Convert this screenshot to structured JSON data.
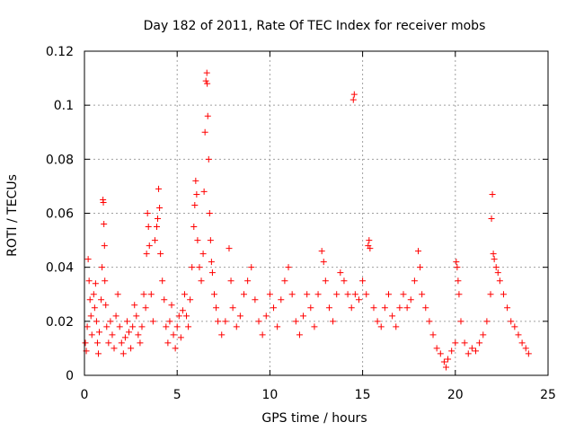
{
  "chart_data": {
    "type": "scatter",
    "title": "Day 182 of 2011, Rate Of TEC Index for receiver mobs",
    "xlabel": "GPS time / hours",
    "ylabel": "ROTI / TECUs",
    "xlim": [
      0,
      25
    ],
    "ylim": [
      0,
      0.12
    ],
    "xticks": [
      0,
      5,
      10,
      15,
      20,
      25
    ],
    "yticks": [
      0,
      0.02,
      0.04,
      0.06,
      0.08,
      0.1,
      0.12
    ],
    "xtick_labels": [
      "0",
      "5",
      "10",
      "15",
      "20",
      "25"
    ],
    "ytick_labels": [
      "0",
      "0.02",
      "0.04",
      "0.06",
      "0.08",
      "0.1",
      "0.12"
    ],
    "grid": true,
    "marker": "+",
    "color": "#ff0000",
    "series": [
      {
        "points": [
          [
            0.05,
            0.012
          ],
          [
            0.1,
            0.009
          ],
          [
            0.15,
            0.018
          ],
          [
            0.2,
            0.043
          ],
          [
            0.25,
            0.035
          ],
          [
            0.3,
            0.028
          ],
          [
            0.35,
            0.022
          ],
          [
            0.4,
            0.015
          ],
          [
            0.5,
            0.03
          ],
          [
            0.55,
            0.025
          ],
          [
            0.6,
            0.034
          ],
          [
            0.65,
            0.02
          ],
          [
            0.7,
            0.012
          ],
          [
            0.75,
            0.008
          ],
          [
            0.8,
            0.016
          ],
          [
            0.9,
            0.028
          ],
          [
            0.95,
            0.04
          ],
          [
            1.0,
            0.065
          ],
          [
            1.02,
            0.064
          ],
          [
            1.05,
            0.056
          ],
          [
            1.08,
            0.048
          ],
          [
            1.1,
            0.035
          ],
          [
            1.15,
            0.026
          ],
          [
            1.2,
            0.018
          ],
          [
            1.3,
            0.012
          ],
          [
            1.4,
            0.02
          ],
          [
            1.5,
            0.015
          ],
          [
            1.6,
            0.01
          ],
          [
            1.7,
            0.022
          ],
          [
            1.8,
            0.03
          ],
          [
            1.9,
            0.018
          ],
          [
            2.0,
            0.012
          ],
          [
            2.1,
            0.008
          ],
          [
            2.2,
            0.014
          ],
          [
            2.3,
            0.02
          ],
          [
            2.4,
            0.016
          ],
          [
            2.5,
            0.01
          ],
          [
            2.6,
            0.018
          ],
          [
            2.7,
            0.026
          ],
          [
            2.8,
            0.022
          ],
          [
            2.9,
            0.015
          ],
          [
            3.0,
            0.012
          ],
          [
            3.1,
            0.018
          ],
          [
            3.2,
            0.03
          ],
          [
            3.3,
            0.025
          ],
          [
            3.35,
            0.045
          ],
          [
            3.4,
            0.06
          ],
          [
            3.45,
            0.055
          ],
          [
            3.5,
            0.048
          ],
          [
            3.6,
            0.03
          ],
          [
            3.7,
            0.02
          ],
          [
            3.8,
            0.05
          ],
          [
            3.9,
            0.055
          ],
          [
            3.95,
            0.058
          ],
          [
            4.0,
            0.069
          ],
          [
            4.05,
            0.062
          ],
          [
            4.1,
            0.045
          ],
          [
            4.2,
            0.035
          ],
          [
            4.3,
            0.028
          ],
          [
            4.4,
            0.018
          ],
          [
            4.5,
            0.012
          ],
          [
            4.6,
            0.02
          ],
          [
            4.7,
            0.026
          ],
          [
            4.8,
            0.015
          ],
          [
            4.9,
            0.01
          ],
          [
            5.0,
            0.018
          ],
          [
            5.1,
            0.022
          ],
          [
            5.2,
            0.014
          ],
          [
            5.3,
            0.024
          ],
          [
            5.4,
            0.03
          ],
          [
            5.5,
            0.022
          ],
          [
            5.6,
            0.018
          ],
          [
            5.7,
            0.028
          ],
          [
            5.8,
            0.04
          ],
          [
            5.9,
            0.055
          ],
          [
            5.95,
            0.063
          ],
          [
            6.0,
            0.072
          ],
          [
            6.05,
            0.067
          ],
          [
            6.1,
            0.05
          ],
          [
            6.2,
            0.04
          ],
          [
            6.3,
            0.035
          ],
          [
            6.4,
            0.045
          ],
          [
            6.45,
            0.068
          ],
          [
            6.5,
            0.09
          ],
          [
            6.55,
            0.109
          ],
          [
            6.6,
            0.112
          ],
          [
            6.62,
            0.108
          ],
          [
            6.65,
            0.096
          ],
          [
            6.7,
            0.08
          ],
          [
            6.75,
            0.06
          ],
          [
            6.8,
            0.05
          ],
          [
            6.85,
            0.042
          ],
          [
            6.9,
            0.038
          ],
          [
            7.0,
            0.03
          ],
          [
            7.1,
            0.025
          ],
          [
            7.2,
            0.02
          ],
          [
            7.4,
            0.015
          ],
          [
            7.6,
            0.02
          ],
          [
            7.8,
            0.047
          ],
          [
            7.9,
            0.035
          ],
          [
            8.0,
            0.025
          ],
          [
            8.2,
            0.018
          ],
          [
            8.4,
            0.022
          ],
          [
            8.6,
            0.03
          ],
          [
            8.8,
            0.035
          ],
          [
            9.0,
            0.04
          ],
          [
            9.2,
            0.028
          ],
          [
            9.4,
            0.02
          ],
          [
            9.6,
            0.015
          ],
          [
            9.8,
            0.022
          ],
          [
            10.0,
            0.03
          ],
          [
            10.2,
            0.025
          ],
          [
            10.4,
            0.018
          ],
          [
            10.6,
            0.028
          ],
          [
            10.8,
            0.035
          ],
          [
            11.0,
            0.04
          ],
          [
            11.2,
            0.03
          ],
          [
            11.4,
            0.02
          ],
          [
            11.6,
            0.015
          ],
          [
            11.8,
            0.022
          ],
          [
            12.0,
            0.03
          ],
          [
            12.2,
            0.025
          ],
          [
            12.4,
            0.018
          ],
          [
            12.6,
            0.03
          ],
          [
            12.8,
            0.046
          ],
          [
            12.9,
            0.042
          ],
          [
            13.0,
            0.035
          ],
          [
            13.2,
            0.025
          ],
          [
            13.4,
            0.02
          ],
          [
            13.6,
            0.03
          ],
          [
            13.8,
            0.038
          ],
          [
            14.0,
            0.035
          ],
          [
            14.2,
            0.03
          ],
          [
            14.4,
            0.025
          ],
          [
            14.5,
            0.102
          ],
          [
            14.55,
            0.104
          ],
          [
            14.6,
            0.03
          ],
          [
            14.8,
            0.028
          ],
          [
            15.0,
            0.035
          ],
          [
            15.2,
            0.03
          ],
          [
            15.3,
            0.048
          ],
          [
            15.35,
            0.05
          ],
          [
            15.4,
            0.047
          ],
          [
            15.6,
            0.025
          ],
          [
            15.8,
            0.02
          ],
          [
            16.0,
            0.018
          ],
          [
            16.2,
            0.025
          ],
          [
            16.4,
            0.03
          ],
          [
            16.6,
            0.022
          ],
          [
            16.8,
            0.018
          ],
          [
            17.0,
            0.025
          ],
          [
            17.2,
            0.03
          ],
          [
            17.4,
            0.025
          ],
          [
            17.6,
            0.028
          ],
          [
            17.8,
            0.035
          ],
          [
            18.0,
            0.046
          ],
          [
            18.1,
            0.04
          ],
          [
            18.2,
            0.03
          ],
          [
            18.4,
            0.025
          ],
          [
            18.6,
            0.02
          ],
          [
            18.8,
            0.015
          ],
          [
            19.0,
            0.01
          ],
          [
            19.2,
            0.008
          ],
          [
            19.4,
            0.005
          ],
          [
            19.5,
            0.003
          ],
          [
            19.6,
            0.006
          ],
          [
            19.8,
            0.009
          ],
          [
            20.0,
            0.012
          ],
          [
            20.05,
            0.042
          ],
          [
            20.1,
            0.04
          ],
          [
            20.15,
            0.035
          ],
          [
            20.2,
            0.03
          ],
          [
            20.3,
            0.02
          ],
          [
            20.5,
            0.012
          ],
          [
            20.7,
            0.008
          ],
          [
            20.9,
            0.01
          ],
          [
            21.1,
            0.009
          ],
          [
            21.3,
            0.012
          ],
          [
            21.5,
            0.015
          ],
          [
            21.7,
            0.02
          ],
          [
            21.9,
            0.03
          ],
          [
            21.95,
            0.058
          ],
          [
            22.0,
            0.067
          ],
          [
            22.05,
            0.045
          ],
          [
            22.1,
            0.043
          ],
          [
            22.2,
            0.04
          ],
          [
            22.3,
            0.038
          ],
          [
            22.4,
            0.035
          ],
          [
            22.6,
            0.03
          ],
          [
            22.8,
            0.025
          ],
          [
            23.0,
            0.02
          ],
          [
            23.2,
            0.018
          ],
          [
            23.4,
            0.015
          ],
          [
            23.6,
            0.012
          ],
          [
            23.8,
            0.01
          ],
          [
            23.95,
            0.008
          ]
        ]
      }
    ]
  }
}
